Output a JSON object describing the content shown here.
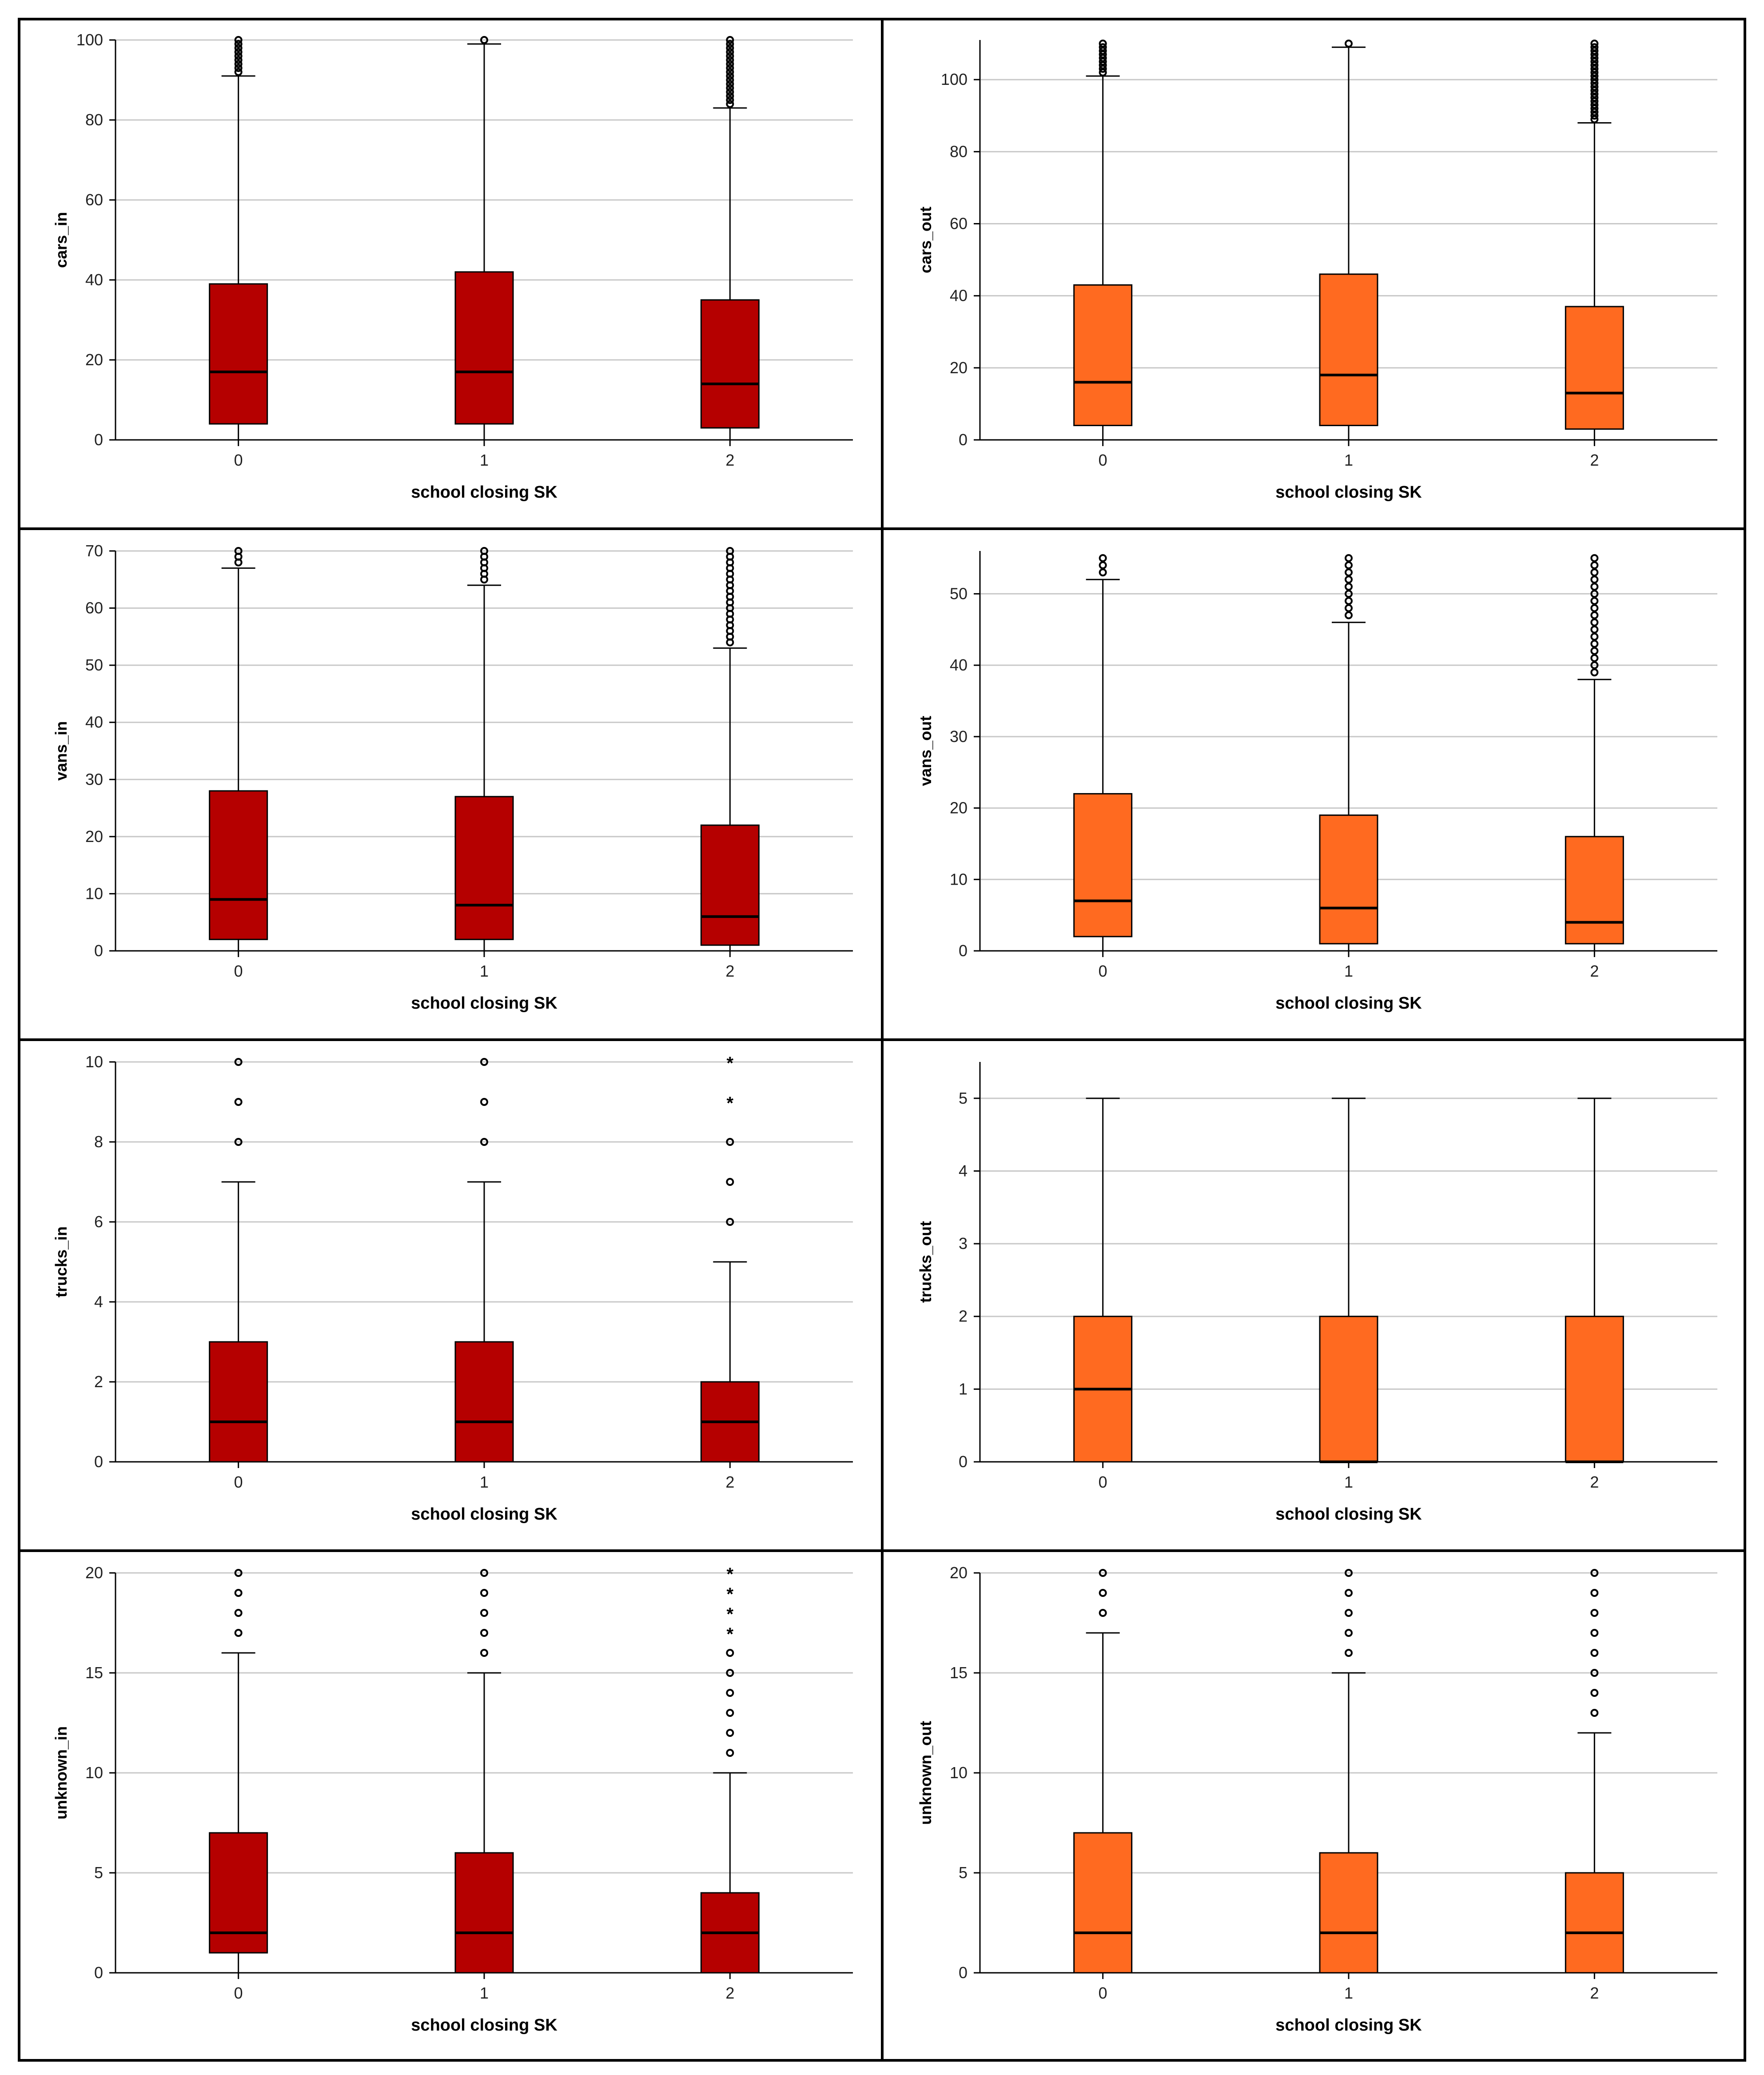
{
  "figure": {
    "box_colors": {
      "in": "#b50000",
      "out": "#ff6a20"
    }
  },
  "chart_data": [
    {
      "type": "boxplot",
      "ylabel": "cars_in",
      "xlabel": "school closing SK",
      "categories": [
        "0",
        "1",
        "2"
      ],
      "ylim": [
        0,
        100
      ],
      "yticks": [
        "0",
        "20",
        "40",
        "60",
        "80",
        "100"
      ],
      "color": "#b50000",
      "boxes": [
        {
          "q1": 4,
          "median": 17,
          "q3": 39,
          "whisker_low": 0,
          "whisker_high": 91,
          "outliers": [
            92,
            93,
            94,
            95,
            96,
            97,
            98,
            99,
            100
          ],
          "extremes": []
        },
        {
          "q1": 4,
          "median": 17,
          "q3": 42,
          "whisker_low": 0,
          "whisker_high": 99,
          "outliers": [
            100
          ],
          "extremes": []
        },
        {
          "q1": 3,
          "median": 14,
          "q3": 35,
          "whisker_low": 0,
          "whisker_high": 83,
          "outliers": [
            84,
            85,
            86,
            87,
            88,
            89,
            90,
            91,
            92,
            93,
            94,
            95,
            96,
            97,
            98,
            99,
            100
          ],
          "extremes": []
        }
      ]
    },
    {
      "type": "boxplot",
      "ylabel": "cars_out",
      "xlabel": "school closing SK",
      "categories": [
        "0",
        "1",
        "2"
      ],
      "ylim": [
        0,
        111
      ],
      "yticks": [
        "0",
        "20",
        "40",
        "60",
        "80",
        "100"
      ],
      "color": "#ff6a20",
      "boxes": [
        {
          "q1": 4,
          "median": 16,
          "q3": 43,
          "whisker_low": 0,
          "whisker_high": 101,
          "outliers": [
            102,
            103,
            104,
            105,
            106,
            107,
            108,
            109,
            110
          ],
          "extremes": []
        },
        {
          "q1": 4,
          "median": 18,
          "q3": 46,
          "whisker_low": 0,
          "whisker_high": 109,
          "outliers": [
            110
          ],
          "extremes": []
        },
        {
          "q1": 3,
          "median": 13,
          "q3": 37,
          "whisker_low": 0,
          "whisker_high": 88,
          "outliers": [
            89,
            90,
            91,
            92,
            93,
            94,
            95,
            96,
            97,
            98,
            99,
            100,
            101,
            102,
            103,
            104,
            105,
            106,
            107,
            108,
            109,
            110
          ],
          "extremes": []
        }
      ]
    },
    {
      "type": "boxplot",
      "ylabel": "vans_in",
      "xlabel": "school closing SK",
      "categories": [
        "0",
        "1",
        "2"
      ],
      "ylim": [
        0,
        70
      ],
      "yticks": [
        "0",
        "10",
        "20",
        "30",
        "40",
        "50",
        "60",
        "70"
      ],
      "color": "#b50000",
      "boxes": [
        {
          "q1": 2,
          "median": 9,
          "q3": 28,
          "whisker_low": 0,
          "whisker_high": 67,
          "outliers": [
            68,
            69,
            70
          ],
          "extremes": []
        },
        {
          "q1": 2,
          "median": 8,
          "q3": 27,
          "whisker_low": 0,
          "whisker_high": 64,
          "outliers": [
            65,
            66,
            67,
            68,
            69,
            70
          ],
          "extremes": []
        },
        {
          "q1": 1,
          "median": 6,
          "q3": 22,
          "whisker_low": 0,
          "whisker_high": 53,
          "outliers": [
            54,
            55,
            56,
            57,
            58,
            59,
            60,
            61,
            62,
            63,
            64,
            65,
            66,
            67,
            68,
            69,
            70
          ],
          "extremes": []
        }
      ]
    },
    {
      "type": "boxplot",
      "ylabel": "vans_out",
      "xlabel": "school closing SK",
      "categories": [
        "0",
        "1",
        "2"
      ],
      "ylim": [
        0,
        56
      ],
      "yticks": [
        "0",
        "10",
        "20",
        "30",
        "40",
        "50"
      ],
      "color": "#ff6a20",
      "boxes": [
        {
          "q1": 2,
          "median": 7,
          "q3": 22,
          "whisker_low": 0,
          "whisker_high": 52,
          "outliers": [
            53,
            54,
            55
          ],
          "extremes": []
        },
        {
          "q1": 1,
          "median": 6,
          "q3": 19,
          "whisker_low": 0,
          "whisker_high": 46,
          "outliers": [
            47,
            48,
            49,
            50,
            51,
            52,
            53,
            54,
            55
          ],
          "extremes": []
        },
        {
          "q1": 1,
          "median": 4,
          "q3": 16,
          "whisker_low": 0,
          "whisker_high": 38,
          "outliers": [
            39,
            40,
            41,
            42,
            43,
            44,
            45,
            46,
            47,
            48,
            49,
            50,
            51,
            52,
            53,
            54,
            55
          ],
          "extremes": []
        }
      ]
    },
    {
      "type": "boxplot",
      "ylabel": "trucks_in",
      "xlabel": "school closing SK",
      "categories": [
        "0",
        "1",
        "2"
      ],
      "ylim": [
        0,
        10
      ],
      "yticks": [
        "0",
        "2",
        "4",
        "6",
        "8",
        "10"
      ],
      "color": "#b50000",
      "boxes": [
        {
          "q1": 0,
          "median": 1,
          "q3": 3,
          "whisker_low": 0,
          "whisker_high": 7,
          "outliers": [
            8,
            9,
            10
          ],
          "extremes": []
        },
        {
          "q1": 0,
          "median": 1,
          "q3": 3,
          "whisker_low": 0,
          "whisker_high": 7,
          "outliers": [
            8,
            9,
            10
          ],
          "extremes": []
        },
        {
          "q1": 0,
          "median": 1,
          "q3": 2,
          "whisker_low": 0,
          "whisker_high": 5,
          "outliers": [
            6,
            7,
            8
          ],
          "extremes": [
            9,
            10
          ]
        }
      ]
    },
    {
      "type": "boxplot",
      "ylabel": "trucks_out",
      "xlabel": "school closing SK",
      "categories": [
        "0",
        "1",
        "2"
      ],
      "ylim": [
        0,
        5.5
      ],
      "yticks": [
        "0",
        "1",
        "2",
        "3",
        "4",
        "5"
      ],
      "color": "#ff6a20",
      "boxes": [
        {
          "q1": 0,
          "median": 1,
          "q3": 2,
          "whisker_low": 0,
          "whisker_high": 5,
          "outliers": [],
          "extremes": []
        },
        {
          "q1": 0,
          "median": 0,
          "q3": 2,
          "whisker_low": 0,
          "whisker_high": 5,
          "outliers": [],
          "extremes": []
        },
        {
          "q1": 0,
          "median": 0,
          "q3": 2,
          "whisker_low": 0,
          "whisker_high": 5,
          "outliers": [],
          "extremes": []
        }
      ]
    },
    {
      "type": "boxplot",
      "ylabel": "unknown_in",
      "xlabel": "school closing SK",
      "categories": [
        "0",
        "1",
        "2"
      ],
      "ylim": [
        0,
        20
      ],
      "yticks": [
        "0",
        "5",
        "10",
        "15",
        "20"
      ],
      "color": "#b50000",
      "boxes": [
        {
          "q1": 1,
          "median": 2,
          "q3": 7,
          "whisker_low": 0,
          "whisker_high": 16,
          "outliers": [
            17,
            18,
            19,
            20
          ],
          "extremes": []
        },
        {
          "q1": 0,
          "median": 2,
          "q3": 6,
          "whisker_low": 0,
          "whisker_high": 15,
          "outliers": [
            16,
            17,
            18,
            19,
            20
          ],
          "extremes": []
        },
        {
          "q1": 0,
          "median": 2,
          "q3": 4,
          "whisker_low": 0,
          "whisker_high": 10,
          "outliers": [
            11,
            12,
            13,
            14,
            15,
            16
          ],
          "extremes": [
            17,
            18,
            19,
            20
          ]
        }
      ]
    },
    {
      "type": "boxplot",
      "ylabel": "unknown_out",
      "xlabel": "school closing SK",
      "categories": [
        "0",
        "1",
        "2"
      ],
      "ylim": [
        0,
        20
      ],
      "yticks": [
        "0",
        "5",
        "10",
        "15",
        "20"
      ],
      "color": "#ff6a20",
      "boxes": [
        {
          "q1": 0,
          "median": 2,
          "q3": 7,
          "whisker_low": 0,
          "whisker_high": 17,
          "outliers": [
            18,
            19,
            20
          ],
          "extremes": []
        },
        {
          "q1": 0,
          "median": 2,
          "q3": 6,
          "whisker_low": 0,
          "whisker_high": 15,
          "outliers": [
            16,
            17,
            18,
            19,
            20
          ],
          "extremes": []
        },
        {
          "q1": 0,
          "median": 2,
          "q3": 5,
          "whisker_low": 0,
          "whisker_high": 12,
          "outliers": [
            13,
            14,
            15,
            16,
            17,
            18,
            19,
            20
          ],
          "extremes": []
        }
      ]
    }
  ]
}
